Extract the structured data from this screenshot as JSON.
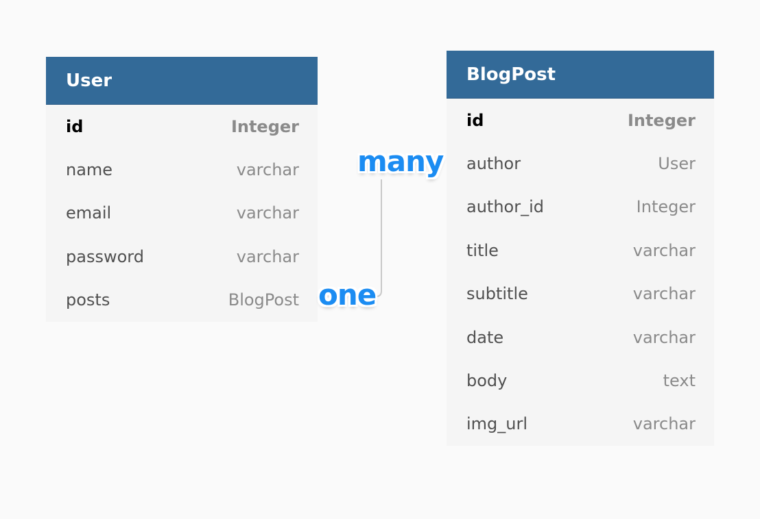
{
  "tables": {
    "user": {
      "title": "User",
      "rows": [
        {
          "name": "id",
          "type": "Integer"
        },
        {
          "name": "name",
          "type": "varchar"
        },
        {
          "name": "email",
          "type": "varchar"
        },
        {
          "name": "password",
          "type": "varchar"
        },
        {
          "name": "posts",
          "type": "BlogPost"
        }
      ]
    },
    "blogpost": {
      "title": "BlogPost",
      "rows": [
        {
          "name": "id",
          "type": "Integer"
        },
        {
          "name": "author",
          "type": "User"
        },
        {
          "name": "author_id",
          "type": "Integer"
        },
        {
          "name": "title",
          "type": "varchar"
        },
        {
          "name": "subtitle",
          "type": "varchar"
        },
        {
          "name": "date",
          "type": "varchar"
        },
        {
          "name": "body",
          "type": "text"
        },
        {
          "name": "img_url",
          "type": "varchar"
        }
      ]
    }
  },
  "relationship": {
    "many_label": "many",
    "one_label": "one"
  },
  "colors": {
    "header": "#336a98",
    "label": "#1b8cf2",
    "connector": "#c8c8c8"
  }
}
